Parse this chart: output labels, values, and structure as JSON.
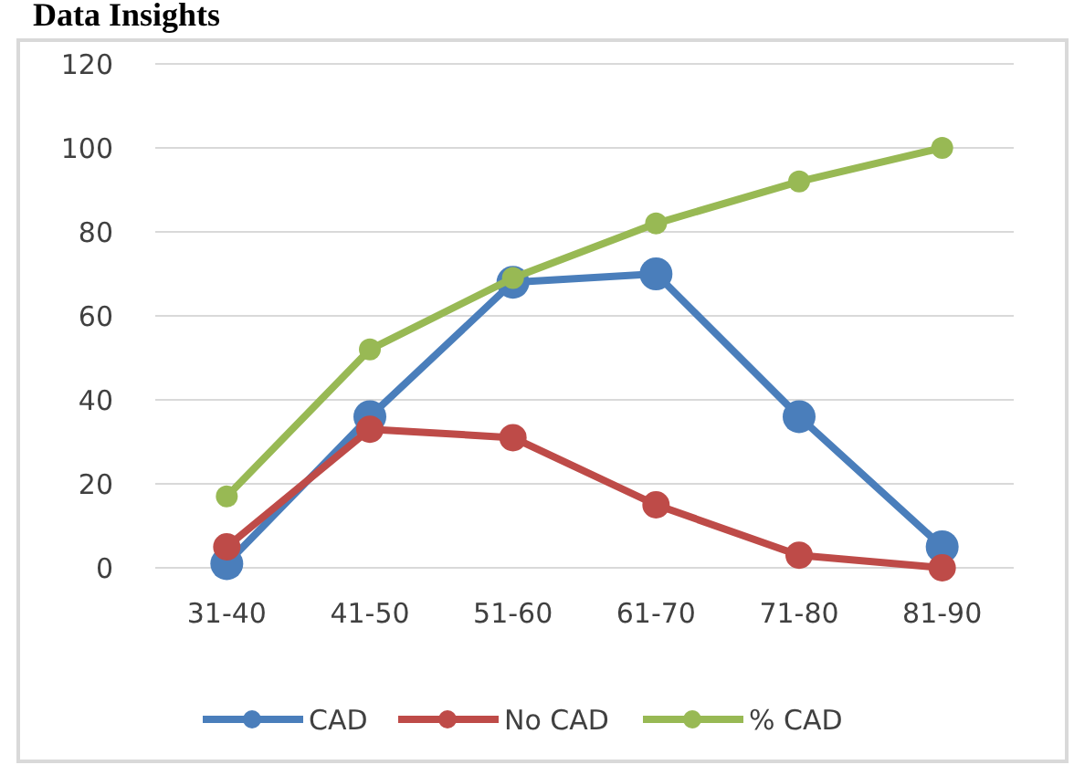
{
  "chart_data": {
    "type": "line",
    "title": "Data Insights",
    "categories": [
      "31-40",
      "41-50",
      "51-60",
      "61-70",
      "71-80",
      "81-90"
    ],
    "series": [
      {
        "name": "CAD",
        "color": "#4a7ebb",
        "values": [
          1,
          36,
          68,
          70,
          36,
          5
        ]
      },
      {
        "name": "No CAD",
        "color": "#be4b48",
        "values": [
          5,
          33,
          31,
          15,
          3,
          0
        ]
      },
      {
        "name": "% CAD",
        "color": "#98b954",
        "values": [
          17,
          52,
          69,
          82,
          92,
          100
        ]
      }
    ],
    "ylim": [
      0,
      120
    ],
    "yticks": [
      0,
      20,
      40,
      60,
      80,
      100,
      120
    ],
    "grid": "y",
    "legend": "bottom",
    "marker": "circle"
  }
}
